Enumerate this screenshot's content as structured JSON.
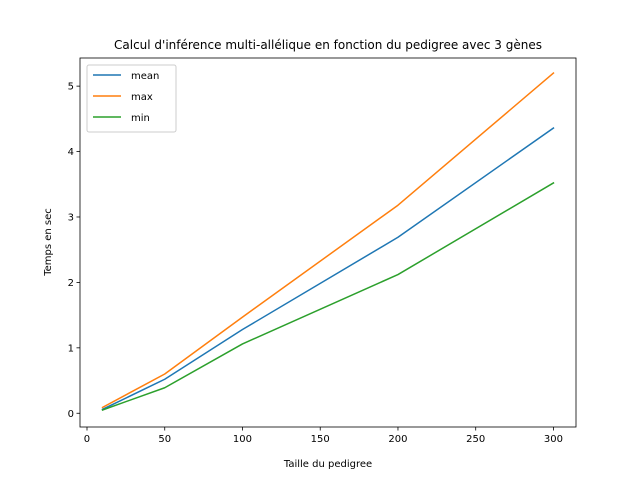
{
  "chart_data": {
    "type": "line",
    "title": "Calcul d'inférence multi-allélique en fonction du pedigree avec 3 gènes",
    "xlabel": "Taille du pedigree",
    "ylabel": "Temps en sec",
    "x": [
      10,
      50,
      100,
      200,
      300
    ],
    "series": [
      {
        "name": "mean",
        "color": "#1f77b4",
        "values": [
          0.06,
          0.52,
          1.28,
          2.69,
          4.36
        ]
      },
      {
        "name": "max",
        "color": "#ff7f0e",
        "values": [
          0.09,
          0.6,
          1.47,
          3.18,
          5.2
        ]
      },
      {
        "name": "min",
        "color": "#2ca02c",
        "values": [
          0.05,
          0.39,
          1.06,
          2.12,
          3.52
        ]
      }
    ],
    "xlim": [
      -4.5,
      314.5
    ],
    "ylim": [
      -0.21,
      5.43
    ],
    "xticks": [
      0,
      50,
      100,
      150,
      200,
      250,
      300
    ],
    "yticks": [
      0,
      1,
      2,
      3,
      4,
      5
    ],
    "grid": false,
    "legend_position": "top-left"
  }
}
